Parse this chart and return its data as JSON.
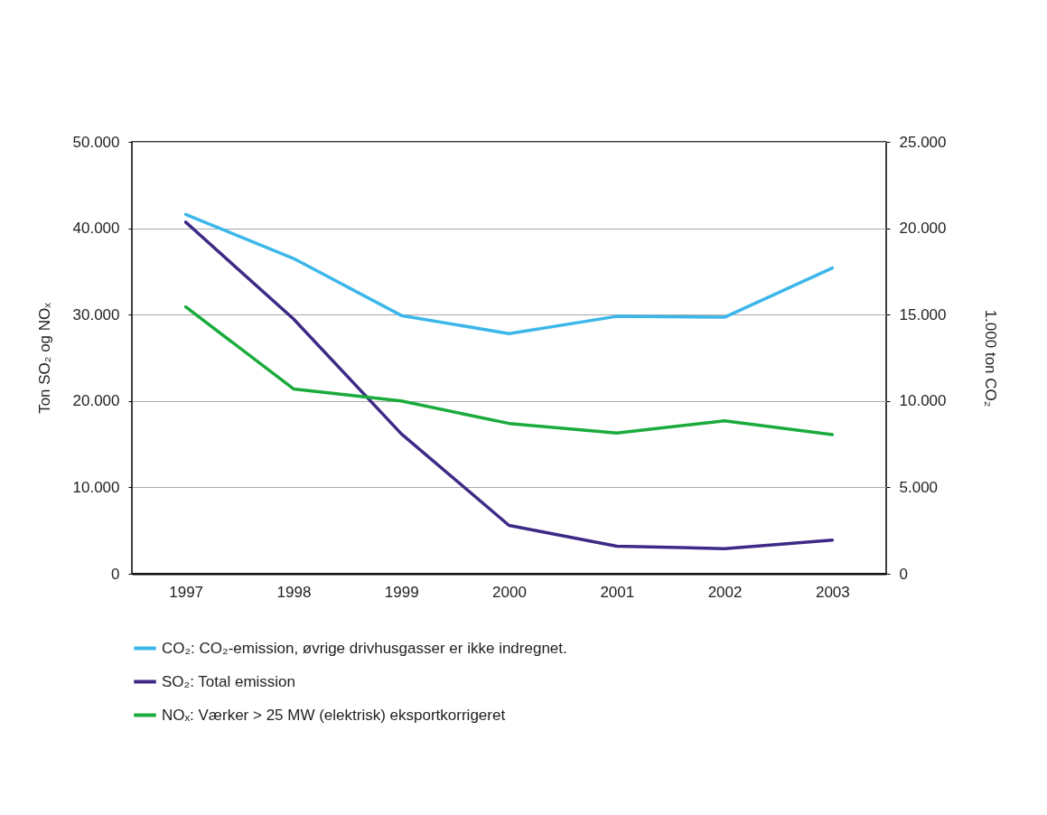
{
  "chart_data": {
    "type": "line",
    "ylabel": "Ton SO₂ og NOₓ",
    "y2label": "1.000 ton CO₂",
    "categories": [
      "1997",
      "1998",
      "1999",
      "2000",
      "2001",
      "2002",
      "2003"
    ],
    "series": [
      {
        "name": "CO₂: CO₂-emission, øvrige drivhusgasser er ikke indregnet.",
        "color": "#3db7ea",
        "axis": "y2",
        "values": [
          20800,
          18250,
          14950,
          13900,
          14900,
          14850,
          17700
        ]
      },
      {
        "name": "SO₂: Total emission",
        "color": "#3e2a86",
        "values": [
          40700,
          29500,
          16200,
          5600,
          3200,
          2900,
          3900
        ]
      },
      {
        "name": "NOₓ: Værker > 25 MW (elektrisk) eksportkorrigeret",
        "color": "#1aab3c",
        "values": [
          30900,
          21400,
          20000,
          17400,
          16300,
          17700,
          16100
        ]
      }
    ],
    "ylim": [
      0,
      50000
    ],
    "yticks": [
      0,
      {
        "value": 10000,
        "label": "10.000"
      },
      {
        "value": 20000,
        "label": "20.000"
      },
      {
        "value": 30000,
        "label": "30.000"
      },
      {
        "value": 40000,
        "label": "40.000"
      },
      {
        "value": 50000,
        "label": "50.000"
      }
    ],
    "y2lim": [
      0,
      25000
    ],
    "y2ticks": [
      0,
      {
        "value": 5000,
        "label": "5.000"
      },
      {
        "value": 10000,
        "label": "10.000"
      },
      {
        "value": 15000,
        "label": "15.000"
      },
      {
        "value": 20000,
        "label": "20.000"
      },
      {
        "value": 25000,
        "label": "25.000"
      }
    ],
    "grid": "y",
    "legend": "bottom",
    "marker": "none",
    "line_style": "solid"
  }
}
